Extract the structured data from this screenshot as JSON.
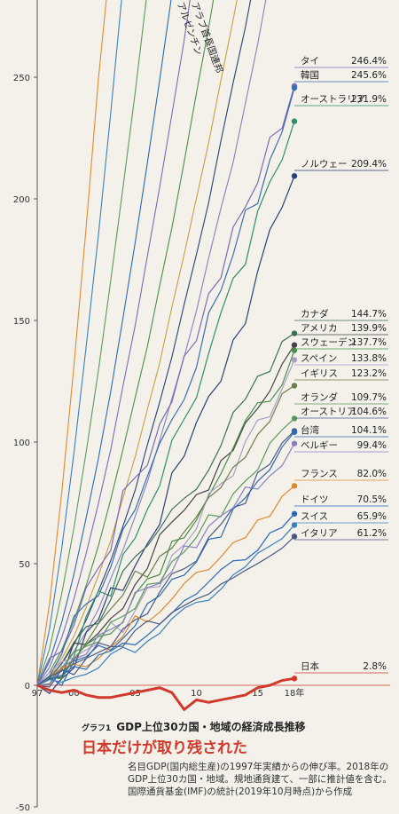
{
  "chart_data": {
    "type": "line",
    "title": "GDP上位30カ国・地域の経済成長推移",
    "subtitle": "日本だけが取り残された",
    "figure_label": "グラフ1",
    "note": "名目GDP(国内総生産)の1997年実績からの伸び率。2018年のGDP上位30カ国・地域。規地通貨建て、一部に推計値を含む。国際通貨基金(IMF)の統計(2019年10月時点)から作成",
    "ylim": [
      -50,
      280
    ],
    "xlim": [
      1997,
      2018
    ],
    "yticks": [
      -50,
      0,
      50,
      100,
      150,
      200,
      250
    ],
    "xtick_labels": [
      {
        "x": 1997,
        "label": "97"
      },
      {
        "x": 2000,
        "label": "00"
      },
      {
        "x": 2005,
        "label": "05"
      },
      {
        "x": 2010,
        "label": "10"
      },
      {
        "x": 2015,
        "label": "15"
      },
      {
        "x": 2018,
        "label": "18年"
      }
    ],
    "offchart_labels": [
      "アルゼンチン",
      "アラブ首長国連邦"
    ],
    "series": [
      {
        "name": "タイ",
        "pct": "246.4%",
        "final": 246.4,
        "color": "#7a6bb8"
      },
      {
        "name": "韓国",
        "pct": "245.6%",
        "final": 245.6,
        "color": "#3a6fb0"
      },
      {
        "name": "オーストラリア",
        "pct": "231.9%",
        "final": 231.9,
        "color": "#2f8f6a"
      },
      {
        "name": "ノルウェー",
        "pct": "209.4%",
        "final": 209.4,
        "color": "#2b3f7a"
      },
      {
        "name": "カナダ",
        "pct": "144.7%",
        "final": 144.7,
        "color": "#3e6f5a"
      },
      {
        "name": "アメリカ",
        "pct": "139.9%",
        "final": 139.9,
        "color": "#444444"
      },
      {
        "name": "スウェーデン",
        "pct": "137.7%",
        "final": 137.7,
        "color": "#4a8f4a"
      },
      {
        "name": "スペイン",
        "pct": "133.8%",
        "final": 133.8,
        "color": "#a8a0c8"
      },
      {
        "name": "イギリス",
        "pct": "123.2%",
        "final": 123.2,
        "color": "#6a7f4a"
      },
      {
        "name": "オランダ",
        "pct": "109.7%",
        "final": 109.7,
        "color": "#5a9a5a"
      },
      {
        "name": "オーストリア",
        "pct": "104.6%",
        "final": 104.6,
        "color": "#4a5a8a"
      },
      {
        "name": "台湾",
        "pct": "104.1%",
        "final": 104.1,
        "color": "#2e6ab0"
      },
      {
        "name": "ベルギー",
        "pct": "99.4%",
        "final": 99.4,
        "color": "#8a80c0"
      },
      {
        "name": "フランス",
        "pct": "82.0%",
        "final": 82.0,
        "color": "#e08a30"
      },
      {
        "name": "ドイツ",
        "pct": "70.5%",
        "final": 70.5,
        "color": "#2a6ab8"
      },
      {
        "name": "スイス",
        "pct": "65.9%",
        "final": 65.9,
        "color": "#3a7fc0"
      },
      {
        "name": "イタリア",
        "pct": "61.2%",
        "final": 61.2,
        "color": "#4a5a80"
      },
      {
        "name": "日本",
        "pct": "2.8%",
        "final": 2.8,
        "color": "#d0392b",
        "x": [
          1997,
          1998,
          1999,
          2000,
          2001,
          2002,
          2003,
          2004,
          2005,
          2006,
          2007,
          2008,
          2009,
          2010,
          2011,
          2012,
          2013,
          2014,
          2015,
          2016,
          2017,
          2018
        ],
        "values": [
          0,
          -2,
          -3,
          -2,
          -4,
          -5,
          -5,
          -4,
          -3,
          -2,
          -1,
          -3,
          -10,
          -6,
          -7,
          -6,
          -5,
          -4,
          -1,
          0,
          2,
          2.8
        ]
      }
    ]
  }
}
